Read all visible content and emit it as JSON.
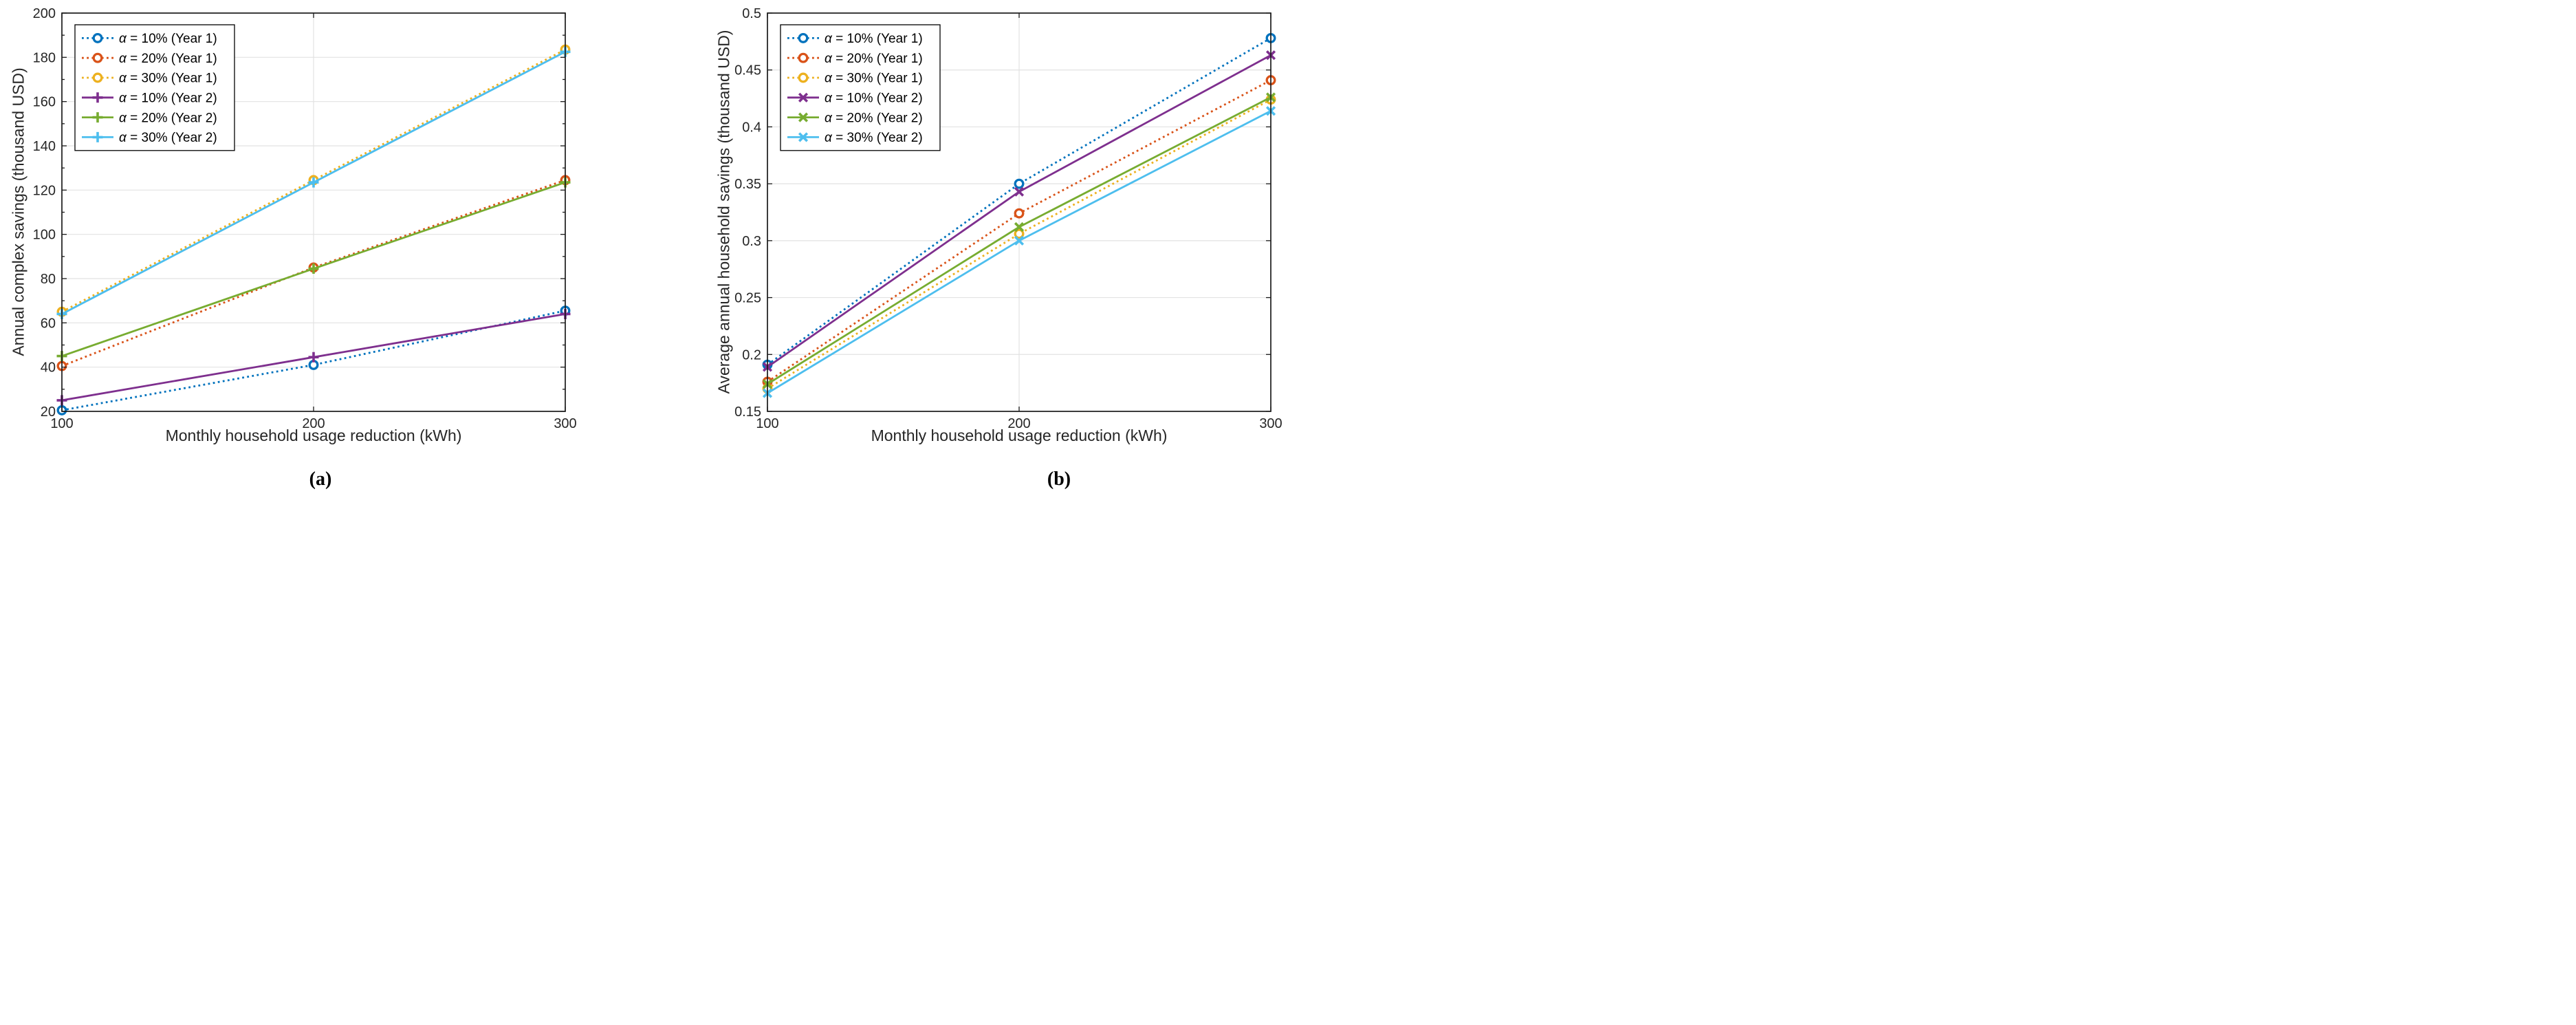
{
  "page": {
    "background": "#ffffff"
  },
  "chart_data": [
    {
      "type": "line",
      "panel": "a",
      "caption": "(a)",
      "title": "",
      "xlabel": "Monthly household usage reduction (kWh)",
      "ylabel": "Annual complex savings (thousand USD)",
      "x": [
        100,
        200,
        300
      ],
      "xlim": [
        100,
        300
      ],
      "ylim": [
        20,
        200
      ],
      "xticks": [
        100,
        200,
        300
      ],
      "xtick_labels": [
        "100",
        "200",
        "300"
      ],
      "yticks": [
        20,
        40,
        60,
        80,
        100,
        120,
        140,
        160,
        180,
        200
      ],
      "ytick_labels": [
        "20",
        "40",
        "60",
        "80",
        "100",
        "120",
        "140",
        "160",
        "180",
        "200"
      ],
      "y_minor_ticks": [
        30,
        50,
        70,
        90,
        110,
        130,
        150,
        170,
        190
      ],
      "grid": true,
      "legend_position": "top-left",
      "series": [
        {
          "name": "α = 10% (Year 1)",
          "color": "#0072BD",
          "line": "dotted",
          "marker": "circle",
          "values": [
            20.5,
            41,
            65.5
          ]
        },
        {
          "name": "α = 20% (Year 1)",
          "color": "#D95319",
          "line": "dotted",
          "marker": "circle",
          "values": [
            40.5,
            85,
            124.5
          ]
        },
        {
          "name": "α = 30% (Year 1)",
          "color": "#EDB120",
          "line": "dotted",
          "marker": "circle",
          "values": [
            65,
            124.5,
            183.5
          ]
        },
        {
          "name": "α = 10% (Year 2)",
          "color": "#7E2F8E",
          "line": "solid",
          "marker": "plus",
          "values": [
            25,
            44.5,
            64
          ]
        },
        {
          "name": "α = 20% (Year 2)",
          "color": "#77AC30",
          "line": "solid",
          "marker": "plus",
          "values": [
            45,
            84.5,
            123.5
          ]
        },
        {
          "name": "α = 30% (Year 2)",
          "color": "#4DBEEE",
          "line": "solid",
          "marker": "plus",
          "values": [
            64,
            123.5,
            182.5
          ]
        }
      ]
    },
    {
      "type": "line",
      "panel": "b",
      "caption": "(b)",
      "title": "",
      "xlabel": "Monthly household usage reduction (kWh)",
      "ylabel": "Average annual household savings (thousand USD)",
      "x": [
        100,
        200,
        300
      ],
      "xlim": [
        100,
        300
      ],
      "ylim": [
        0.15,
        0.5
      ],
      "xticks": [
        100,
        200,
        300
      ],
      "xtick_labels": [
        "100",
        "200",
        "300"
      ],
      "yticks": [
        0.15,
        0.2,
        0.25,
        0.3,
        0.35,
        0.4,
        0.45,
        0.5
      ],
      "ytick_labels": [
        "0.15",
        "0.2",
        "0.25",
        "0.3",
        "0.35",
        "0.4",
        "0.45",
        "0.5"
      ],
      "y_minor_ticks": [],
      "grid": true,
      "legend_position": "top-left",
      "series": [
        {
          "name": "α = 10% (Year 1)",
          "color": "#0072BD",
          "line": "dotted",
          "marker": "circle",
          "values": [
            0.191,
            0.35,
            0.478
          ]
        },
        {
          "name": "α = 20% (Year 1)",
          "color": "#D95319",
          "line": "dotted",
          "marker": "circle",
          "values": [
            0.176,
            0.324,
            0.441
          ]
        },
        {
          "name": "α = 30% (Year 1)",
          "color": "#EDB120",
          "line": "dotted",
          "marker": "circle",
          "values": [
            0.17,
            0.306,
            0.424
          ]
        },
        {
          "name": "α = 10% (Year 2)",
          "color": "#7E2F8E",
          "line": "solid",
          "marker": "x",
          "values": [
            0.189,
            0.343,
            0.463
          ]
        },
        {
          "name": "α = 20% (Year 2)",
          "color": "#77AC30",
          "line": "solid",
          "marker": "x",
          "values": [
            0.174,
            0.312,
            0.426
          ]
        },
        {
          "name": "α = 30% (Year 2)",
          "color": "#4DBEEE",
          "line": "solid",
          "marker": "x",
          "values": [
            0.166,
            0.3,
            0.414
          ]
        }
      ]
    }
  ],
  "style": {
    "axis_color": "#1a1a1a",
    "tick_label_color": "#262626",
    "grid_color": "#e2e2e2",
    "legend_border_color": "#000000",
    "legend_background": "#ffffff"
  }
}
